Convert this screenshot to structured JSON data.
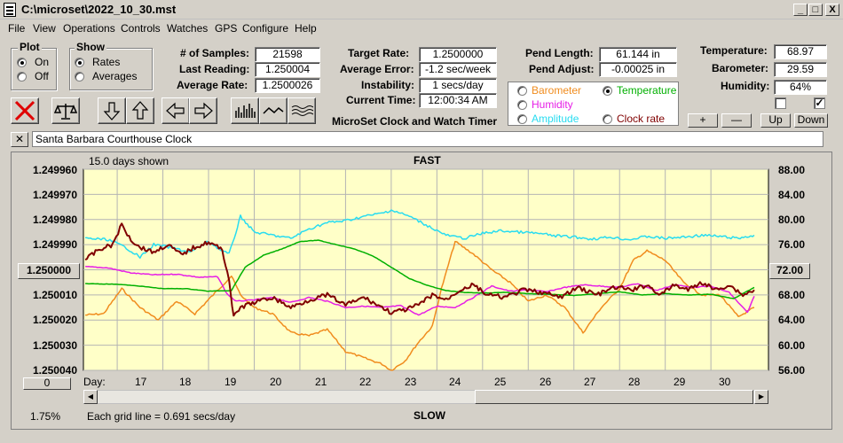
{
  "window": {
    "title": "C:\\microset\\2022_10_30.mst"
  },
  "window_buttons": {
    "minimize": "_",
    "maximize": "□",
    "close": "X"
  },
  "menu": [
    "File",
    "View",
    "Operations",
    "Controls",
    "Watches",
    "GPS",
    "Configure",
    "Help"
  ],
  "plot_group": {
    "title": "Plot",
    "on": "On",
    "off": "Off",
    "selected": "On"
  },
  "show_group": {
    "title": "Show",
    "rates": "Rates",
    "averages": "Averages",
    "selected": "Rates"
  },
  "stats": {
    "samples_label": "# of Samples:",
    "samples": "21598",
    "last_reading_label": "Last Reading:",
    "last_reading": "1.250004",
    "average_rate_label": "Average Rate:",
    "average_rate": "1.2500026"
  },
  "rates": {
    "target_rate_label": "Target Rate:",
    "target_rate": "1.2500000",
    "average_error_label": "Average Error:",
    "average_error": "-1.2 sec/week",
    "instability_label": "Instability:",
    "instability": "1 secs/day",
    "current_time_label": "Current Time:",
    "current_time": "12:00:34 AM"
  },
  "pendulum": {
    "length_label": "Pend Length:",
    "length": "61.144 in",
    "adjust_label": "Pend Adjust:",
    "adjust": "-0.00025 in"
  },
  "environment": {
    "temperature_label": "Temperature:",
    "temperature": "68.97",
    "barometer_label": "Barometer:",
    "barometer": "29.59",
    "humidity_label": "Humidity:",
    "humidity": "64%"
  },
  "checkboxes": {
    "left_checked": false,
    "right_checked": true,
    "right_mark": "✓"
  },
  "graph_select": {
    "barometer": "Barometer",
    "temperature": "Temperature",
    "humidity": "Humidity",
    "amplitude": "Amplitude",
    "clock_rate": "Clock rate",
    "selected": "Temperature"
  },
  "right_axis_buttons": {
    "plus": "+",
    "minus": "—",
    "up": "Up",
    "down": "Down"
  },
  "app_caption": "MicroSet Clock and Watch Timer",
  "clock_name": "Santa Barbara Courthouse Clock",
  "clock_close": "✕",
  "plot": {
    "days_shown": "15.0 days shown",
    "top_label": "FAST",
    "bottom_label": "SLOW",
    "grid_note": "Each grid line = 0.691 secs/day",
    "zoom": "1.75%",
    "zero_button": "0",
    "center_left_button": "1.250000",
    "center_right_button": "72.00",
    "day_label": "Day:"
  },
  "colors": {
    "plot_bg": "#ffffc8",
    "grid": "#b4b4b4",
    "rate": "#800000",
    "temperature": "#00b000",
    "barometer": "#f08c1e",
    "humidity": "#e61ee6",
    "amplitude": "#28dcf0",
    "clock_rate": "#800000"
  },
  "chart_data": {
    "type": "line",
    "title": "FAST",
    "xlabel": "Day:",
    "x_ticks": [
      "17",
      "18",
      "19",
      "20",
      "21",
      "22",
      "23",
      "24",
      "25",
      "26",
      "27",
      "28",
      "29",
      "30"
    ],
    "xlim": [
      16.26,
      31.26
    ],
    "y_left_ticks": [
      "1.249960",
      "1.249970",
      "1.249980",
      "1.249990",
      "1.250000",
      "1.250010",
      "1.250020",
      "1.250030",
      "1.250040"
    ],
    "y_left_range": [
      1.24996,
      1.25004
    ],
    "y_left_inverted": true,
    "y_right_ticks": [
      "88.00",
      "84.00",
      "80.00",
      "76.00",
      "72.00",
      "68.00",
      "64.00",
      "60.00",
      "56.00"
    ],
    "y_right_range": [
      56,
      88
    ],
    "grid": true,
    "series": [
      {
        "name": "Clock rate",
        "color": "#800000",
        "axis": "left",
        "x": [
          16.3,
          16.6,
          16.9,
          17.1,
          17.3,
          17.5,
          17.8,
          18.1,
          18.4,
          18.7,
          19.0,
          19.3,
          19.45,
          19.55,
          19.7,
          20.0,
          20.4,
          20.8,
          21.2,
          21.6,
          22.0,
          22.4,
          22.8,
          23.0,
          23.3,
          23.6,
          23.9,
          24.2,
          24.5,
          24.8,
          25.1,
          25.5,
          25.9,
          26.3,
          26.7,
          27.1,
          27.5,
          27.9,
          28.3,
          28.6,
          28.9,
          29.2,
          29.5,
          29.8,
          30.1,
          30.4,
          30.7,
          30.95
        ],
        "y": [
          1.249996,
          1.249992,
          1.24999,
          1.249982,
          1.249988,
          1.249991,
          1.249993,
          1.24999,
          1.249994,
          1.249991,
          1.249989,
          1.249992,
          1.250004,
          1.250019,
          1.250015,
          1.250013,
          1.250011,
          1.250015,
          1.250012,
          1.25001,
          1.250014,
          1.250011,
          1.250015,
          1.250017,
          1.250016,
          1.250014,
          1.25001,
          1.250012,
          1.250008,
          1.250006,
          1.25001,
          1.250011,
          1.250008,
          1.250009,
          1.250011,
          1.250007,
          1.25001,
          1.250007,
          1.250008,
          1.250006,
          1.25001,
          1.250006,
          1.250008,
          1.250005,
          1.250008,
          1.250006,
          1.25001,
          1.250008
        ]
      },
      {
        "name": "Temperature",
        "color": "#00b000",
        "axis": "right",
        "x": [
          16.3,
          17.0,
          17.5,
          18.0,
          18.5,
          19.0,
          19.5,
          19.8,
          20.2,
          20.6,
          21.0,
          21.4,
          21.8,
          22.2,
          22.6,
          23.0,
          23.4,
          23.8,
          24.2,
          24.6,
          25.0,
          25.5,
          26.0,
          26.5,
          27.0,
          27.5,
          28.0,
          28.5,
          29.0,
          29.5,
          30.0,
          30.5,
          30.95
        ],
        "y": [
          69.8,
          69.7,
          69.4,
          69.0,
          69.0,
          68.6,
          68.7,
          72.4,
          74.3,
          75.3,
          76.5,
          76.7,
          76.0,
          75.3,
          74.2,
          72.4,
          70.6,
          69.5,
          68.7,
          68.4,
          68.3,
          68.4,
          68.2,
          68.1,
          67.9,
          68.2,
          68.5,
          68.0,
          68.2,
          68.0,
          68.1,
          67.4,
          69.2
        ]
      },
      {
        "name": "Barometer",
        "color": "#f08c1e",
        "axis": "right",
        "x": [
          16.3,
          16.7,
          17.1,
          17.5,
          17.9,
          18.3,
          18.7,
          19.1,
          19.5,
          19.7,
          20.0,
          20.4,
          20.8,
          21.2,
          21.6,
          22.0,
          22.4,
          22.8,
          23.0,
          23.3,
          23.6,
          23.9,
          24.1,
          24.4,
          24.8,
          25.2,
          25.6,
          26.0,
          26.4,
          26.8,
          27.2,
          27.6,
          28.0,
          28.3,
          28.6,
          29.0,
          29.4,
          29.8,
          30.2,
          30.6,
          30.95
        ],
        "y": [
          64.8,
          65.0,
          69.0,
          66.0,
          64.0,
          67.0,
          65.0,
          68.0,
          71.0,
          68.0,
          66.0,
          65.0,
          62.0,
          61.5,
          62.5,
          59.0,
          58.0,
          57.0,
          56.0,
          57.5,
          60.5,
          63.0,
          69.0,
          76.5,
          74.5,
          72.0,
          70.0,
          67.0,
          68.0,
          66.0,
          62.0,
          66.0,
          69.0,
          73.5,
          75.0,
          73.5,
          70.0,
          68.0,
          68.0,
          64.5,
          66.0
        ]
      },
      {
        "name": "Humidity",
        "color": "#e61ee6",
        "axis": "right",
        "x": [
          16.3,
          16.8,
          17.3,
          17.8,
          18.3,
          18.8,
          19.2,
          19.4,
          19.6,
          20.0,
          20.4,
          20.8,
          21.2,
          21.6,
          22.0,
          22.4,
          22.8,
          23.2,
          23.6,
          24.0,
          24.4,
          24.8,
          25.2,
          25.6,
          26.0,
          26.4,
          26.8,
          27.2,
          27.6,
          28.0,
          28.4,
          28.8,
          29.2,
          29.6,
          30.0,
          30.4,
          30.6,
          30.8,
          30.95
        ],
        "y": [
          72.5,
          72.3,
          71.5,
          71.2,
          71.3,
          70.8,
          70.9,
          68.2,
          67.0,
          67.2,
          67.6,
          66.8,
          67.6,
          67.0,
          66.0,
          66.2,
          66.0,
          66.3,
          64.8,
          66.2,
          66.0,
          67.6,
          69.4,
          68.6,
          68.8,
          68.5,
          69.2,
          69.6,
          69.4,
          69.2,
          69.8,
          68.7,
          69.6,
          69.2,
          69.4,
          68.4,
          66.8,
          65.2,
          67.8
        ]
      },
      {
        "name": "Amplitude",
        "color": "#28dcf0",
        "axis": "right",
        "x": [
          16.3,
          16.8,
          17.2,
          17.5,
          17.8,
          18.2,
          18.6,
          19.0,
          19.3,
          19.45,
          19.6,
          19.7,
          20.0,
          20.4,
          20.8,
          21.2,
          21.6,
          22.0,
          22.4,
          22.8,
          23.0,
          23.4,
          23.8,
          24.2,
          24.6,
          25.0,
          25.4,
          25.8,
          26.2,
          26.6,
          27.0,
          27.4,
          27.8,
          28.2,
          28.6,
          29.0,
          29.4,
          29.8,
          30.2,
          30.6,
          30.95
        ],
        "y": [
          77.0,
          76.8,
          75.5,
          74.0,
          76.0,
          75.5,
          74.8,
          76.5,
          75.0,
          74.5,
          78.0,
          80.5,
          78.0,
          77.5,
          77.0,
          78.5,
          79.5,
          79.8,
          80.5,
          81.0,
          81.5,
          80.5,
          79.0,
          77.5,
          77.0,
          77.8,
          78.2,
          78.0,
          77.8,
          77.4,
          77.2,
          76.9,
          77.2,
          76.8,
          77.3,
          77.0,
          77.2,
          77.5,
          77.3,
          77.0,
          77.5
        ]
      }
    ]
  }
}
